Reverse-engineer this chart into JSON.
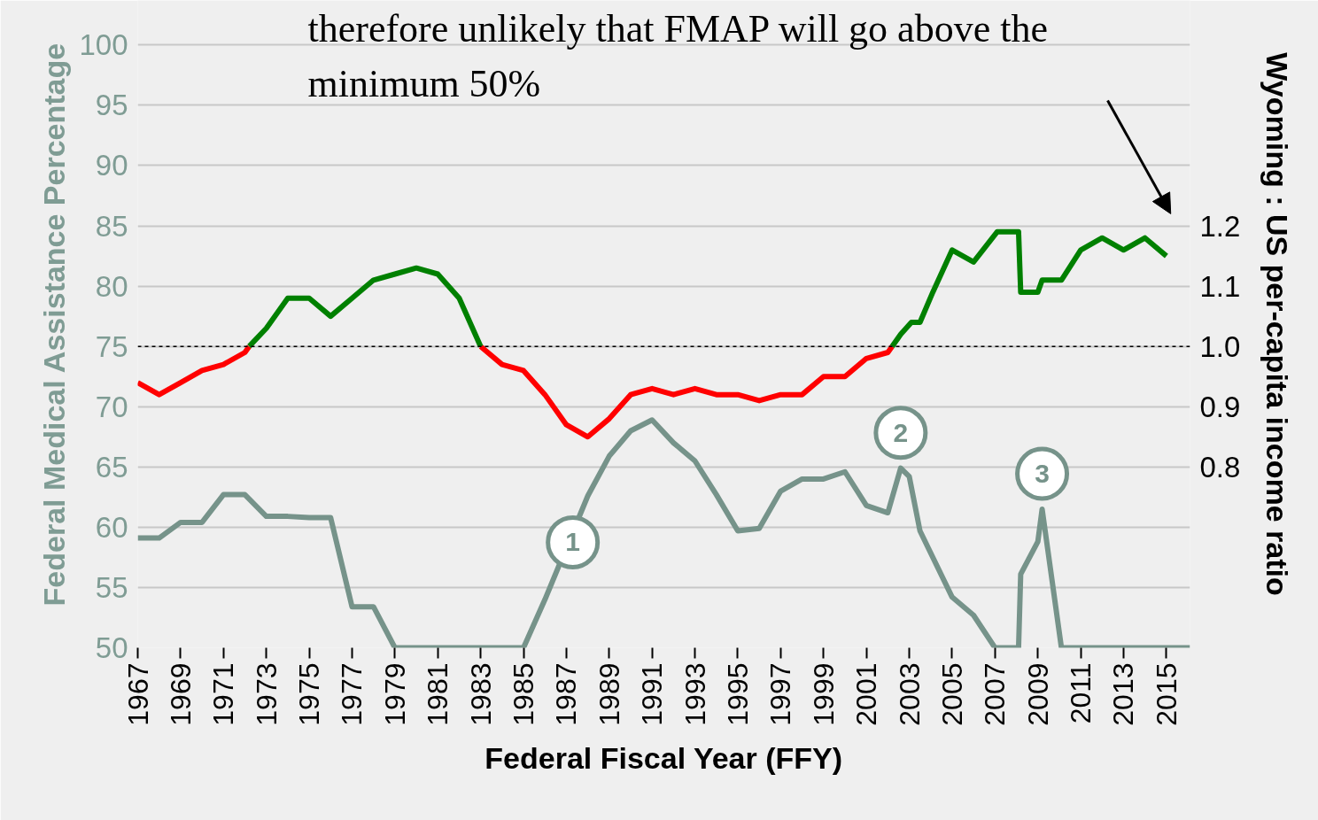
{
  "chart_data": {
    "type": "line",
    "xlabel": "Federal Fiscal Year (FFY)",
    "ylabel": "Federal Medical Assistance Percentage",
    "y2label": "Wyoming : US per-capita income ratio",
    "xlim": [
      1967,
      2016.1
    ],
    "xticks": [
      1967,
      1969,
      1971,
      1973,
      1975,
      1977,
      1979,
      1981,
      1983,
      1985,
      1987,
      1989,
      1991,
      1993,
      1995,
      1997,
      1999,
      2001,
      2003,
      2005,
      2007,
      2009,
      2011,
      2013,
      2015
    ],
    "ylim": [
      50,
      103.7
    ],
    "yticks": [
      50,
      55,
      60,
      65,
      70,
      75,
      80,
      85,
      90,
      95,
      100
    ],
    "y2lim": [
      0.5,
      1.574
    ],
    "y2ticks": [
      0.8,
      0.9,
      {
        "value": 1.0,
        "label": "1.0"
      },
      1.1,
      1.2
    ],
    "grid": "y",
    "series": [
      {
        "color": "#76938a",
        "x": [
          1967,
          1968,
          1969,
          1970,
          1971,
          1972,
          1973,
          1974,
          1975,
          1976,
          1977,
          1978,
          1979,
          1980,
          1981,
          1982,
          1983,
          1984,
          1985,
          1986,
          1988,
          1989,
          1990,
          1991,
          1992,
          1993,
          1994,
          1995,
          1996,
          1997,
          1998,
          1999,
          2000,
          2001,
          2002,
          2002.6,
          2003,
          2003.5,
          2005,
          2006,
          2007,
          2008.1,
          2008.2,
          2009,
          2009.2,
          2010.1,
          2016.1
        ],
        "values": [
          59.1,
          59.1,
          60.4,
          60.4,
          62.7,
          62.7,
          60.9,
          60.9,
          60.8,
          60.8,
          53.4,
          53.4,
          50,
          50,
          50,
          50,
          50,
          50,
          50,
          54,
          62.6,
          65.9,
          68,
          68.9,
          67.0,
          65.5,
          62.7,
          59.7,
          59.9,
          63.0,
          64.0,
          64.0,
          64.6,
          61.8,
          61.2,
          64.9,
          64.2,
          59.7,
          54.2,
          52.7,
          50,
          50,
          56.1,
          58.8,
          61.5,
          50,
          50
        ]
      },
      {
        "color": "#ff0000",
        "axis": "y2",
        "x": [
          1967,
          1968,
          1969,
          1970,
          1971,
          1972,
          1972.2,
          1978,
          1983,
          1984,
          1985,
          1986,
          1987,
          1988,
          1989,
          1990,
          1991,
          1992,
          1993,
          1994,
          1995,
          1996,
          1997,
          1998,
          1999,
          2000,
          2001,
          2002,
          2002.2
        ],
        "values": [
          0.94,
          0.92,
          0.94,
          0.96,
          0.97,
          0.99,
          1.0,
          null,
          1.0,
          0.97,
          0.96,
          0.92,
          0.87,
          0.85,
          0.88,
          0.92,
          0.93,
          0.92,
          0.93,
          0.92,
          0.92,
          0.91,
          0.92,
          0.92,
          0.95,
          0.95,
          0.98,
          0.99,
          1.0
        ]
      },
      {
        "color": "#008000",
        "axis": "y2",
        "x": [
          1972.2,
          1973,
          1974,
          1975,
          1976,
          1977,
          1978,
          1979,
          1980,
          1981,
          1982,
          1983,
          1990,
          2002.2,
          2002.6,
          2003.1,
          2003.5,
          2004.1,
          2005,
          2006,
          2007.1,
          2008.1,
          2008.2,
          2009,
          2009.2,
          2010.1,
          2011,
          2012,
          2013,
          2014,
          2015
        ],
        "values": [
          1.0,
          1.03,
          1.08,
          1.08,
          1.05,
          1.08,
          1.11,
          1.12,
          1.13,
          1.12,
          1.08,
          1.0,
          null,
          1.0,
          1.02,
          1.04,
          1.04,
          1.09,
          1.16,
          1.14,
          1.19,
          1.19,
          1.09,
          1.09,
          1.11,
          1.11,
          1.16,
          1.18,
          1.16,
          1.18,
          1.15
        ]
      }
    ],
    "ref_lines": [
      {
        "axis": "y2",
        "value": 1.0,
        "color": "#000000",
        "line_style": "dashed"
      }
    ],
    "annotations": [
      "therefore unlikely that FMAP will go above the\nminimum 50%",
      {
        "text": "1",
        "x": 1987.3,
        "y": 58.75
      },
      {
        "text": "2",
        "x": 2002.6,
        "y": 64.9
      },
      {
        "text": "3",
        "x": 2009.2,
        "y": 61.5
      }
    ]
  }
}
